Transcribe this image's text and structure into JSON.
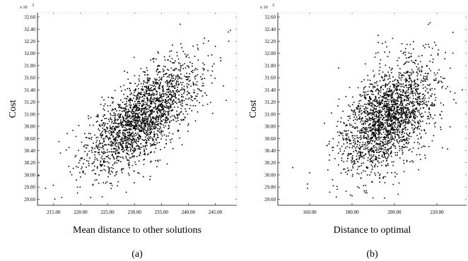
{
  "chart_data": [
    {
      "type": "scatter",
      "panel_label": "(a)",
      "xlabel": "Mean distance to other solutions",
      "ylabel": "Cost",
      "y_scale_label": "x 10",
      "y_scale_exponent": "3",
      "xlim": [
        212.0,
        249.0
      ],
      "ylim": [
        29.5,
        32.67
      ],
      "x_ticks": [
        215,
        220,
        225,
        230,
        235,
        240,
        245
      ],
      "x_tick_labels": [
        "215.00",
        "220.00",
        "225.00",
        "230.00",
        "235.00",
        "240.00",
        "245.00"
      ],
      "y_ticks": [
        29.6,
        29.8,
        30.0,
        30.2,
        30.4,
        30.6,
        30.8,
        31.0,
        31.2,
        31.4,
        31.6,
        31.8,
        32.0,
        32.2,
        32.4,
        32.6
      ],
      "y_tick_labels": [
        "29.60",
        "29.80",
        "30.00",
        "30.20",
        "30.40",
        "30.60",
        "30.80",
        "31.00",
        "31.20",
        "31.40",
        "31.60",
        "31.80",
        "32.00",
        "32.20",
        "32.40",
        "32.60"
      ],
      "grid": false,
      "cluster": {
        "x_mean": 231.5,
        "x_sd": 5.2,
        "y_mean": 30.95,
        "y_sd": 0.45,
        "correlation": 0.68,
        "n_points": 2200
      },
      "points": [
        {
          "x": 213.5,
          "y": 29.78
        },
        {
          "x": 216.5,
          "y": 29.63
        },
        {
          "x": 217.8,
          "y": 30.14
        },
        {
          "x": 247.5,
          "y": 32.2
        },
        {
          "x": 238.5,
          "y": 32.48
        },
        {
          "x": 243.0,
          "y": 32.25
        }
      ]
    },
    {
      "type": "scatter",
      "panel_label": "(b)",
      "xlabel": "Distance to optimal",
      "ylabel": "Cost",
      "y_scale_label": "x 10",
      "y_scale_exponent": "3",
      "xlim": [
        145.0,
        234.0
      ],
      "ylim": [
        29.5,
        32.67
      ],
      "x_ticks": [
        160,
        180,
        200,
        220
      ],
      "x_tick_labels": [
        "160.00",
        "180.00",
        "200.00",
        "220.00"
      ],
      "y_ticks": [
        29.6,
        29.8,
        30.0,
        30.2,
        30.4,
        30.6,
        30.8,
        31.0,
        31.2,
        31.4,
        31.6,
        31.8,
        32.0,
        32.2,
        32.4,
        32.6
      ],
      "y_tick_labels": [
        "29.60",
        "29.80",
        "30.00",
        "30.20",
        "30.40",
        "30.60",
        "30.80",
        "31.00",
        "31.20",
        "31.40",
        "31.60",
        "31.80",
        "32.00",
        "32.20",
        "32.40",
        "32.60"
      ],
      "grid": false,
      "cluster": {
        "x_mean": 197.0,
        "x_sd": 10.5,
        "y_mean": 30.95,
        "y_sd": 0.45,
        "correlation": 0.45,
        "n_points": 2200
      },
      "points": [
        {
          "x": 152.0,
          "y": 30.12
        },
        {
          "x": 159.0,
          "y": 29.85
        },
        {
          "x": 159.0,
          "y": 29.78
        },
        {
          "x": 228.0,
          "y": 31.24
        },
        {
          "x": 232.0,
          "y": 31.4
        },
        {
          "x": 216.0,
          "y": 32.48
        }
      ]
    }
  ]
}
